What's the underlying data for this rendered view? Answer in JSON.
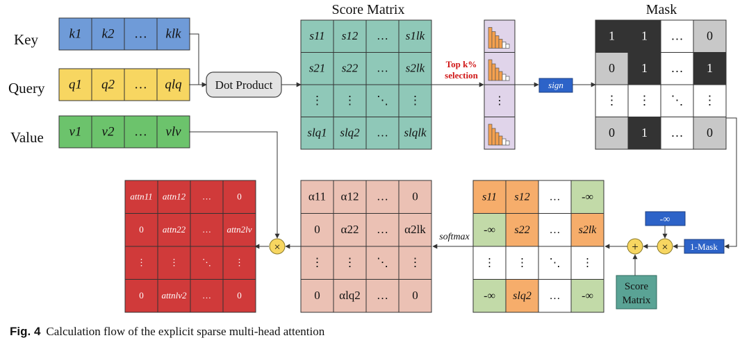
{
  "labels": {
    "key": "Key",
    "query": "Query",
    "value": "Value",
    "score_matrix_title": "Score Matrix",
    "mask_title": "Mask",
    "dot_product": "Dot Product",
    "topk_line1": "Top k%",
    "topk_line2": "selection",
    "sign": "sign",
    "neg_inf_box": "-∞",
    "one_minus_mask": "1-Mask",
    "score_matrix_box_line1": "Score",
    "score_matrix_box_line2": "Matrix",
    "softmax": "softmax",
    "plus": "+",
    "times": "×",
    "topk_dots": "⋮"
  },
  "caption": {
    "fig": "Fig. 4",
    "text": "Calculation flow of the explicit sparse multi-head attention"
  },
  "key_row": [
    "k1",
    "k2",
    "…",
    "klk"
  ],
  "query_row": [
    "q1",
    "q2",
    "…",
    "qlq"
  ],
  "value_row": [
    "v1",
    "v2",
    "…",
    "vlv"
  ],
  "score_matrix": [
    [
      "s11",
      "s12",
      "…",
      "s1lk"
    ],
    [
      "s21",
      "s22",
      "…",
      "s2lk"
    ],
    [
      "⋮",
      "⋮",
      "⋱",
      "⋮"
    ],
    [
      "slq1",
      "slq2",
      "…",
      "slqlk"
    ]
  ],
  "mask_matrix": [
    [
      "1",
      "1",
      "…",
      "0"
    ],
    [
      "0",
      "1",
      "…",
      "1"
    ],
    [
      "⋮",
      "⋮",
      "⋱",
      "⋮"
    ],
    [
      "0",
      "1",
      "…",
      "0"
    ]
  ],
  "mask_colors": [
    [
      "#333333",
      "#333333",
      "#ffffff",
      "#c8c8c8"
    ],
    [
      "#c8c8c8",
      "#333333",
      "#ffffff",
      "#333333"
    ],
    [
      "#ffffff",
      "#ffffff",
      "#ffffff",
      "#ffffff"
    ],
    [
      "#c8c8c8",
      "#333333",
      "#ffffff",
      "#c8c8c8"
    ]
  ],
  "masked_matrix": [
    [
      "s11",
      "s12",
      "…",
      "-∞"
    ],
    [
      "-∞",
      "s22",
      "…",
      "s2lk"
    ],
    [
      "⋮",
      "⋮",
      "⋱",
      "⋮"
    ],
    [
      "-∞",
      "slq2",
      "…",
      "-∞"
    ]
  ],
  "masked_colors": [
    [
      "#f6ad6b",
      "#f6ad6b",
      "#ffffff",
      "#c2daa8"
    ],
    [
      "#c2daa8",
      "#f6ad6b",
      "#ffffff",
      "#f6ad6b"
    ],
    [
      "#ffffff",
      "#ffffff",
      "#ffffff",
      "#ffffff"
    ],
    [
      "#c2daa8",
      "#f6ad6b",
      "#ffffff",
      "#c2daa8"
    ]
  ],
  "alpha_matrix": [
    [
      "α11",
      "α12",
      "…",
      "0"
    ],
    [
      "0",
      "α22",
      "…",
      "α2lk"
    ],
    [
      "⋮",
      "⋮",
      "⋱",
      "⋮"
    ],
    [
      "0",
      "αlq2",
      "…",
      "0"
    ]
  ],
  "attn_matrix": [
    [
      "attn11",
      "attn12",
      "…",
      "0"
    ],
    [
      "0",
      "attn22",
      "…",
      "attn2lv"
    ],
    [
      "⋮",
      "⋮",
      "⋱",
      "⋮"
    ],
    [
      "0",
      "attnlv2",
      "…",
      "0"
    ]
  ],
  "colors": {
    "key": "#6f9bd8",
    "query": "#f7d661",
    "value": "#6cc36c",
    "score": "#8fc8b8",
    "alpha": "#ebc1b4",
    "attn": "#d03a3a",
    "topk": "#e0d4ea",
    "bar": "#f5a04e",
    "op_circle": "#f7d661",
    "blue_box": "#2d63c8",
    "teal_box": "#5aa395",
    "dot_product": "#e3e3e3"
  }
}
